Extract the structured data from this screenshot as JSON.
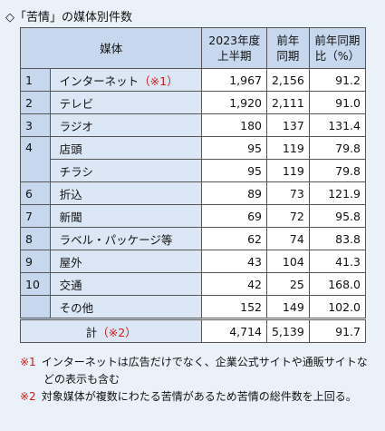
{
  "title": "◇「苦情」の媒体別件数",
  "header": {
    "media": "媒体",
    "col1": [
      "2023年度",
      "上半期"
    ],
    "col2": [
      "前年",
      "同期"
    ],
    "col3": [
      "前年同期",
      "比（%）"
    ]
  },
  "groups": [
    {
      "rank": "1",
      "items": [
        {
          "name": "インターネット",
          "note": "（※1）",
          "values": [
            "1,967",
            "2,156",
            "91.2"
          ]
        }
      ]
    },
    {
      "rank": "2",
      "items": [
        {
          "name": "テレビ",
          "values": [
            "1,920",
            "2,111",
            "91.0"
          ]
        }
      ]
    },
    {
      "rank": "3",
      "items": [
        {
          "name": "ラジオ",
          "values": [
            "180",
            "137",
            "131.4"
          ]
        }
      ]
    },
    {
      "rank": "4",
      "items": [
        {
          "name": "店頭",
          "values": [
            "95",
            "119",
            "79.8"
          ]
        },
        {
          "name": "チラシ",
          "values": [
            "95",
            "119",
            "79.8"
          ]
        }
      ]
    },
    {
      "rank": "6",
      "items": [
        {
          "name": "折込",
          "values": [
            "89",
            "73",
            "121.9"
          ]
        }
      ]
    },
    {
      "rank": "7",
      "items": [
        {
          "name": "新聞",
          "values": [
            "69",
            "72",
            "95.8"
          ]
        }
      ]
    },
    {
      "rank": "8",
      "items": [
        {
          "name": "ラベル・パッケージ等",
          "values": [
            "62",
            "74",
            "83.8"
          ]
        }
      ]
    },
    {
      "rank": "9",
      "items": [
        {
          "name": "屋外",
          "values": [
            "43",
            "104",
            "41.3"
          ]
        }
      ]
    },
    {
      "rank": "10",
      "items": [
        {
          "name": "交通",
          "values": [
            "42",
            "25",
            "168.0"
          ]
        }
      ]
    },
    {
      "rank": null,
      "items": [
        {
          "name": "その他",
          "values": [
            "152",
            "149",
            "102.0"
          ]
        }
      ]
    }
  ],
  "total": {
    "name": "計",
    "note": "（※2）",
    "values": [
      "4,714",
      "5,139",
      "91.7"
    ]
  },
  "notes": [
    {
      "mark": "※1",
      "text": "インターネットは広告だけでなく、企業公式サイトや通販サイトなどの表示も含む"
    },
    {
      "mark": "※2",
      "text": "対象媒体が複数にわたる苦情があるため苦情の総件数を上回る。"
    }
  ]
}
